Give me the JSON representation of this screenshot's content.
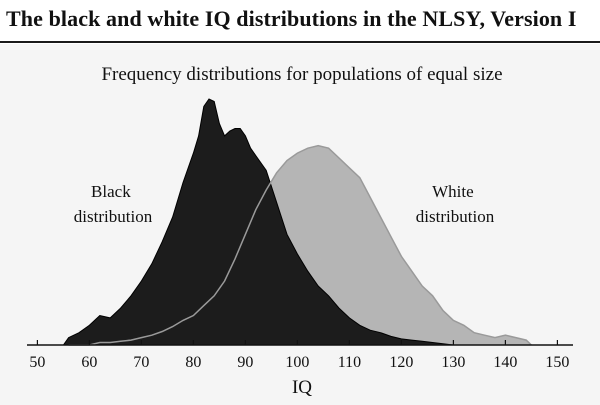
{
  "figure": {
    "title": "The black and white IQ distributions in the NLSY, Version I"
  },
  "chart_data": {
    "type": "area",
    "title": "Frequency distributions for populations of equal size",
    "xlabel": "IQ",
    "ylabel": "",
    "xlim": [
      48,
      153
    ],
    "ylim": [
      0,
      1
    ],
    "xticks": [
      50,
      60,
      70,
      80,
      90,
      100,
      110,
      120,
      130,
      140,
      150
    ],
    "grid": false,
    "series": [
      {
        "name": "White distribution",
        "label_lines": [
          "White",
          "distribution"
        ],
        "color": "#b5b5b5",
        "edge_color": "#9a9a9a",
        "x": [
          56,
          58,
          60,
          62,
          64,
          66,
          68,
          70,
          72,
          74,
          76,
          78,
          80,
          82,
          84,
          86,
          88,
          90,
          92,
          94,
          96,
          98,
          100,
          102,
          104,
          106,
          108,
          110,
          112,
          114,
          116,
          118,
          120,
          122,
          124,
          126,
          128,
          130,
          132,
          134,
          136,
          138,
          140,
          142,
          144,
          145
        ],
        "y": [
          0.0,
          0.0,
          0.0,
          0.01,
          0.01,
          0.015,
          0.02,
          0.03,
          0.04,
          0.055,
          0.075,
          0.1,
          0.12,
          0.16,
          0.2,
          0.26,
          0.35,
          0.45,
          0.55,
          0.63,
          0.7,
          0.75,
          0.78,
          0.8,
          0.81,
          0.8,
          0.76,
          0.72,
          0.68,
          0.6,
          0.52,
          0.44,
          0.36,
          0.3,
          0.24,
          0.2,
          0.14,
          0.1,
          0.08,
          0.05,
          0.04,
          0.03,
          0.04,
          0.03,
          0.02,
          0.0
        ]
      },
      {
        "name": "Black distribution",
        "label_lines": [
          "Black",
          "distribution"
        ],
        "color": "#1c1c1c",
        "edge_color": "#000000",
        "x": [
          55,
          56,
          58,
          60,
          62,
          64,
          66,
          68,
          70,
          72,
          74,
          76,
          78,
          80,
          81,
          82,
          83,
          84,
          85,
          86,
          87,
          88,
          89,
          90,
          91,
          92,
          94,
          96,
          98,
          100,
          102,
          104,
          106,
          108,
          110,
          112,
          114,
          116,
          118,
          120,
          122,
          124,
          126,
          128,
          130
        ],
        "y": [
          0.0,
          0.03,
          0.05,
          0.08,
          0.12,
          0.11,
          0.15,
          0.2,
          0.26,
          0.33,
          0.42,
          0.52,
          0.66,
          0.78,
          0.85,
          0.97,
          1.0,
          0.99,
          0.9,
          0.85,
          0.87,
          0.88,
          0.88,
          0.85,
          0.8,
          0.77,
          0.71,
          0.58,
          0.45,
          0.37,
          0.3,
          0.24,
          0.2,
          0.15,
          0.11,
          0.08,
          0.06,
          0.05,
          0.035,
          0.025,
          0.02,
          0.015,
          0.01,
          0.005,
          0.0
        ]
      }
    ]
  }
}
